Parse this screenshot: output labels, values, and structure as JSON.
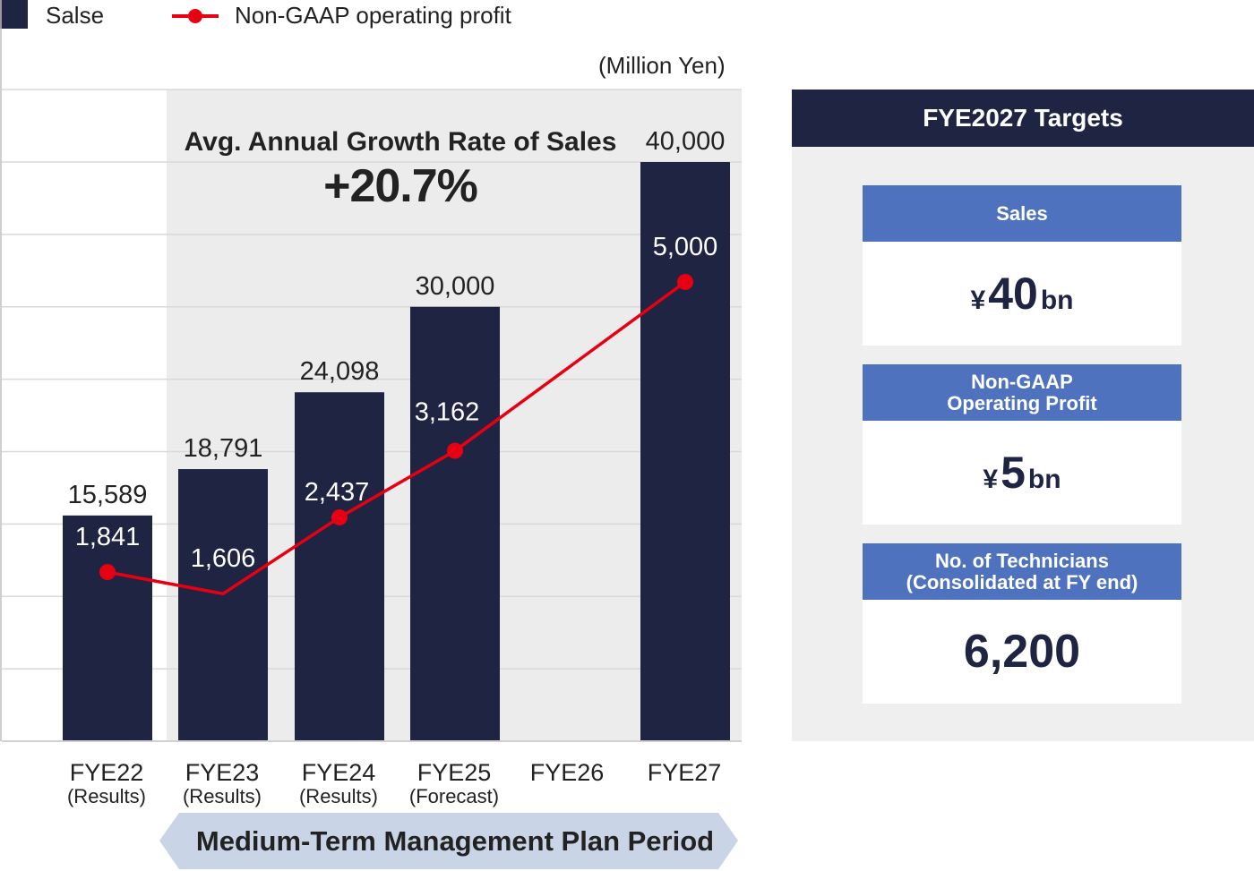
{
  "legend": {
    "sales": "Salse",
    "profit": "Non-GAAP operating profit"
  },
  "unit": "(Million Yen)",
  "growth": {
    "title": "Avg. Annual Growth Rate of Sales",
    "value": "+20.7%"
  },
  "period_banner": "Medium-Term Management Plan Period",
  "colors": {
    "bar": "#1e2442",
    "line": "#e60012",
    "plan_shading": "#ececec",
    "banner": "#c9d4e6",
    "card_header": "#4f72bf"
  },
  "chart_data": {
    "type": "bar",
    "categories": [
      "FYE22",
      "FYE23",
      "FYE24",
      "FYE25",
      "FYE26",
      "FYE27"
    ],
    "category_sublabels": [
      "(Results)",
      "(Results)",
      "(Results)",
      "(Forecast)",
      "",
      ""
    ],
    "series": [
      {
        "name": "Salse",
        "type": "bar",
        "values": [
          15589,
          18791,
          24098,
          30000,
          null,
          40000
        ],
        "labels": [
          "15,589",
          "18,791",
          "24,098",
          "30,000",
          "",
          "40,000"
        ]
      },
      {
        "name": "Non-GAAP operating profit",
        "type": "line",
        "values": [
          1841,
          1606,
          2437,
          3162,
          null,
          5000
        ],
        "labels": [
          "1,841",
          "1,606",
          "2,437",
          "3,162",
          "",
          "5,000"
        ]
      }
    ],
    "ylim": [
      0,
      40000
    ],
    "grid": true,
    "legend_position": "top-left"
  },
  "targets": {
    "title": "FYE2027 Targets",
    "sales": {
      "label": "Sales",
      "yen": "¥",
      "number": "40",
      "unit": "bn"
    },
    "profit": {
      "label_line1": "Non-GAAP",
      "label_line2": "Operating Profit",
      "yen": "¥",
      "number": "5",
      "unit": "bn"
    },
    "technicians": {
      "label_line1": "No. of Technicians",
      "label_line2": "(Consolidated at FY end)",
      "value": "6,200"
    }
  }
}
